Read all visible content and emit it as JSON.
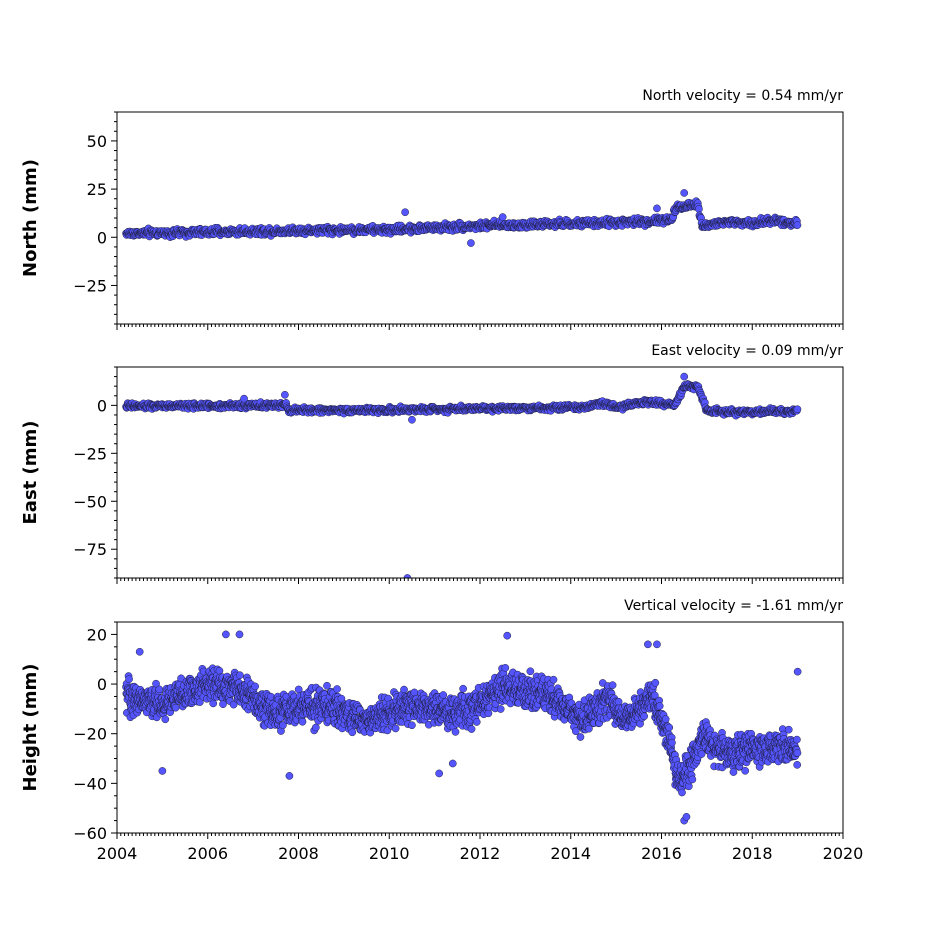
{
  "chart_data": [
    {
      "type": "scatter",
      "id": "north",
      "ylabel": "North (mm)",
      "annotation": "North velocity = 0.54 mm/yr",
      "ylim": [
        -45,
        65
      ],
      "yticks": [
        -25,
        0,
        25,
        50
      ],
      "yticklabels": [
        "−25",
        "0",
        "25",
        "50"
      ],
      "xlim": [
        2004.0,
        2020.0
      ],
      "show_xticklabels": false,
      "series": [
        {
          "marker_fill": "#5555ff",
          "marker_edge": "#202040",
          "trend": [
            [
              2004.2,
              2.0
            ],
            [
              2008.0,
              3.5
            ],
            [
              2010.0,
              4.0
            ],
            [
              2012.0,
              6.0
            ],
            [
              2014.0,
              7.0
            ],
            [
              2015.5,
              8.0
            ],
            [
              2016.2,
              9.0
            ],
            [
              2016.35,
              16.0
            ],
            [
              2016.8,
              17.0
            ],
            [
              2016.9,
              6.0
            ],
            [
              2017.5,
              8.0
            ],
            [
              2018.0,
              7.0
            ],
            [
              2018.5,
              9.0
            ],
            [
              2019.0,
              7.0
            ]
          ],
          "spread": 4,
          "step": 0.012,
          "outliers": [
            [
              2010.35,
              13.0
            ],
            [
              2016.5,
              23.0
            ],
            [
              2011.8,
              -3.0
            ],
            [
              2012.5,
              10.5
            ],
            [
              2015.9,
              15.0
            ]
          ]
        }
      ]
    },
    {
      "type": "scatter",
      "id": "east",
      "ylabel": "East (mm)",
      "annotation": "East velocity = 0.09 mm/yr",
      "ylim": [
        -90,
        20
      ],
      "yticks": [
        -75,
        -50,
        -25,
        0
      ],
      "yticklabels": [
        "−75",
        "−50",
        "−25",
        "0"
      ],
      "xlim": [
        2004.0,
        2020.0
      ],
      "show_xticklabels": false,
      "series": [
        {
          "marker_fill": "#5555ff",
          "marker_edge": "#202040",
          "trend": [
            [
              2004.2,
              -0.5
            ],
            [
              2007.7,
              0.0
            ],
            [
              2007.8,
              -2.5
            ],
            [
              2010.0,
              -2.5
            ],
            [
              2012.0,
              -1.5
            ],
            [
              2014.3,
              -1.0
            ],
            [
              2014.7,
              1.5
            ],
            [
              2015.0,
              -1.0
            ],
            [
              2015.7,
              2.0
            ],
            [
              2016.3,
              0.0
            ],
            [
              2016.5,
              10.0
            ],
            [
              2016.8,
              10.0
            ],
            [
              2017.0,
              -3.0
            ],
            [
              2018.0,
              -3.5
            ],
            [
              2019.0,
              -3.0
            ]
          ],
          "spread": 3,
          "step": 0.012,
          "outliers": [
            [
              2010.4,
              -90.0
            ],
            [
              2007.7,
              5.5
            ],
            [
              2016.5,
              15.0
            ],
            [
              2010.5,
              -7.5
            ],
            [
              2006.8,
              3.5
            ]
          ]
        }
      ]
    },
    {
      "type": "scatter",
      "id": "height",
      "ylabel": "Height (mm)",
      "annotation": "Vertical velocity = -1.61 mm/yr",
      "ylim": [
        -60,
        25
      ],
      "yticks": [
        -60,
        -40,
        -20,
        0,
        20
      ],
      "yticklabels": [
        "−60",
        "−40",
        "−20",
        "0",
        "20"
      ],
      "xlim": [
        2004.0,
        2020.0
      ],
      "show_xticklabels": true,
      "xticks": [
        2004,
        2006,
        2008,
        2010,
        2012,
        2014,
        2016,
        2018,
        2020
      ],
      "xticklabels": [
        "2004",
        "2006",
        "2008",
        "2010",
        "2012",
        "2014",
        "2016",
        "2018",
        "2020"
      ],
      "series": [
        {
          "marker_fill": "#5555ff",
          "marker_edge": "#202040",
          "trend": [
            [
              2004.2,
              -5.0
            ],
            [
              2005.0,
              -8.0
            ],
            [
              2006.0,
              0.0
            ],
            [
              2006.7,
              -2.0
            ],
            [
              2007.5,
              -12.0
            ],
            [
              2008.5,
              -8.0
            ],
            [
              2009.5,
              -15.0
            ],
            [
              2010.5,
              -8.0
            ],
            [
              2011.5,
              -12.0
            ],
            [
              2012.5,
              -2.0
            ],
            [
              2013.5,
              -5.0
            ],
            [
              2014.3,
              -15.0
            ],
            [
              2014.8,
              -5.0
            ],
            [
              2015.2,
              -15.0
            ],
            [
              2015.8,
              -5.0
            ],
            [
              2016.2,
              -25.0
            ],
            [
              2016.4,
              -40.0
            ],
            [
              2016.6,
              -35.0
            ],
            [
              2016.9,
              -22.0
            ],
            [
              2017.5,
              -28.0
            ],
            [
              2018.0,
              -25.0
            ],
            [
              2019.0,
              -27.0
            ]
          ],
          "spread": 14,
          "step": 0.006,
          "outliers": [
            [
              2006.4,
              20.0
            ],
            [
              2006.7,
              20.0
            ],
            [
              2012.6,
              19.5
            ],
            [
              2007.8,
              -37.0
            ],
            [
              2016.5,
              -55.0
            ],
            [
              2016.55,
              -53.5
            ],
            [
              2019.0,
              5.0
            ],
            [
              2011.1,
              -36.0
            ],
            [
              2004.5,
              13.0
            ],
            [
              2015.7,
              16.0
            ],
            [
              2015.9,
              16.0
            ],
            [
              2005.0,
              -35.0
            ],
            [
              2011.4,
              -32.0
            ]
          ]
        }
      ]
    }
  ]
}
